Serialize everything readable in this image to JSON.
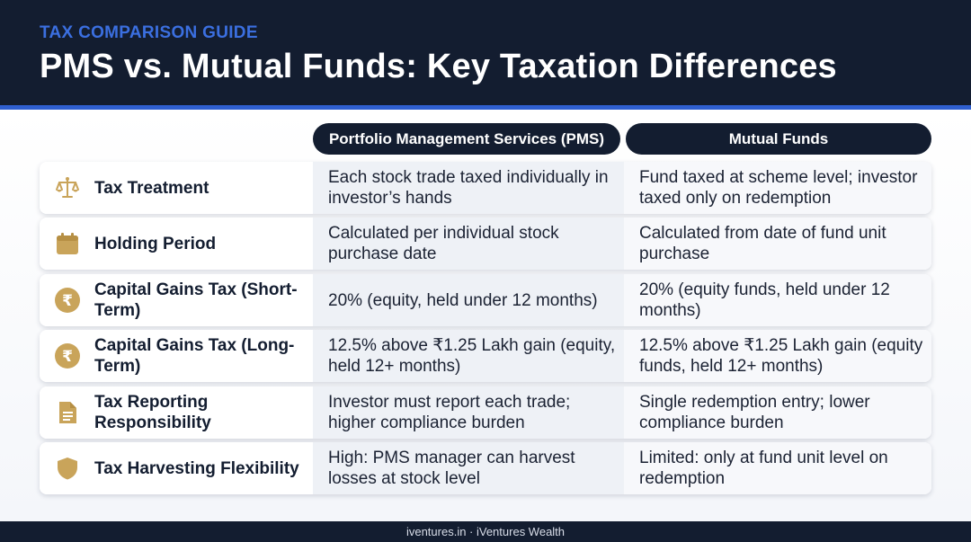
{
  "header": {
    "eyebrow": "TAX COMPARISON GUIDE",
    "title": "PMS vs. Mutual Funds: Key Taxation Differences"
  },
  "columns": {
    "pms": "Portfolio Management Services (PMS)",
    "mf": "Mutual Funds"
  },
  "rows": [
    {
      "icon": "scales-icon",
      "label": "Tax Treatment",
      "pms": "Each stock trade taxed individually in investor’s hands",
      "mf": "Fund taxed at scheme level; investor taxed only on redemption"
    },
    {
      "icon": "calendar-icon",
      "label": "Holding Period",
      "pms": "Calculated per individual stock purchase date",
      "mf": "Calculated from date of fund unit purchase"
    },
    {
      "icon": "rupee-icon",
      "label": "Capital Gains Tax (Short-Term)",
      "pms": "20% (equity, held under 12 months)",
      "mf": "20% (equity funds, held under 12 months)"
    },
    {
      "icon": "rupee-icon",
      "label": "Capital Gains Tax (Long-Term)",
      "pms": "12.5% above ₹1.25 Lakh gain (equity, held 12+ months)",
      "mf": "12.5% above ₹1.25 Lakh gain (equity funds, held 12+ months)"
    },
    {
      "icon": "document-icon",
      "label": "Tax Reporting Responsibility",
      "pms": "Investor must report each trade; higher compliance burden",
      "mf": "Single redemption entry; lower compliance burden"
    },
    {
      "icon": "shield-icon",
      "label": "Tax Harvesting Flexibility",
      "pms": "High: PMS manager can harvest losses at stock level",
      "mf": "Limited: only at fund unit level on redemption"
    }
  ],
  "footer": "iventures.in · iVentures Wealth",
  "colors": {
    "navy": "#131d30",
    "accent_blue": "#2f5fd0",
    "gold": "#c9a45a"
  }
}
